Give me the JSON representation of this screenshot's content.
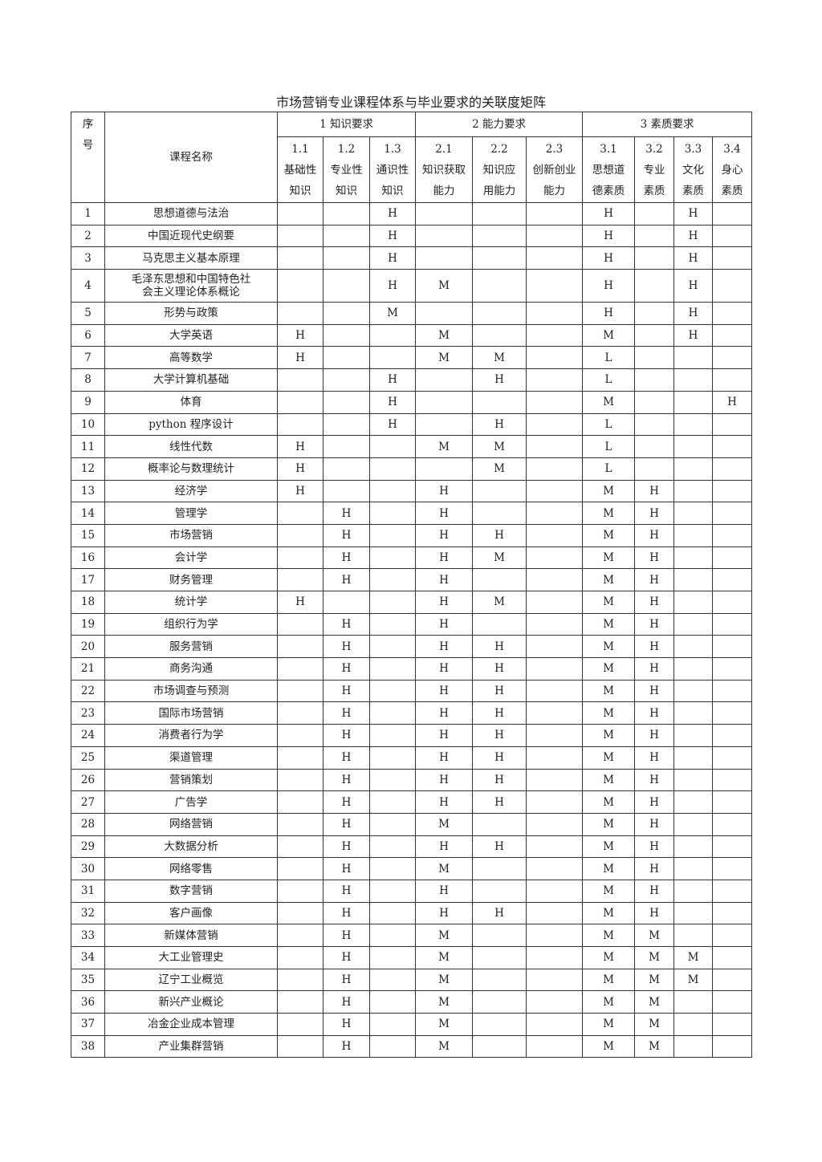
{
  "title": "市场营销专业课程体系与毕业要求的关联度矩阵",
  "header": {
    "no_a": "序",
    "no_b": "号",
    "course": "课程名称",
    "groups": [
      "1 知识要求",
      "2 能力要求",
      "3 素质要求"
    ],
    "subs": [
      {
        "code": "1.1",
        "l1": "基础性",
        "l2": "知识"
      },
      {
        "code": "1.2",
        "l1": "专业性",
        "l2": "知识"
      },
      {
        "code": "1.3",
        "l1": "通识性",
        "l2": "知识"
      },
      {
        "code": "2.1",
        "l1": "知识获取",
        "l2": "能力"
      },
      {
        "code": "2.2",
        "l1": "知识应",
        "l2": "用能力"
      },
      {
        "code": "2.3",
        "l1": "创新创业",
        "l2": "能力"
      },
      {
        "code": "3.1",
        "l1": "思想道",
        "l2": "德素质"
      },
      {
        "code": "3.2",
        "l1": "专业",
        "l2": "素质"
      },
      {
        "code": "3.3",
        "l1": "文化",
        "l2": "素质"
      },
      {
        "code": "3.4",
        "l1": "身心",
        "l2": "素质"
      }
    ]
  },
  "rows": [
    {
      "no": "1",
      "name": "思想道德与法治",
      "v": [
        "",
        "",
        "H",
        "",
        "",
        "",
        "H",
        "",
        "H",
        ""
      ]
    },
    {
      "no": "2",
      "name": "中国近现代史纲要",
      "v": [
        "",
        "",
        "H",
        "",
        "",
        "",
        "H",
        "",
        "H",
        ""
      ]
    },
    {
      "no": "3",
      "name": "马克思主义基本原理",
      "v": [
        "",
        "",
        "H",
        "",
        "",
        "",
        "H",
        "",
        "H",
        ""
      ]
    },
    {
      "no": "4",
      "name": "毛泽东思想和中国特色社会主义理论体系概论",
      "v": [
        "",
        "",
        "H",
        "M",
        "",
        "",
        "H",
        "",
        "H",
        ""
      ]
    },
    {
      "no": "5",
      "name": "形势与政策",
      "v": [
        "",
        "",
        "M",
        "",
        "",
        "",
        "H",
        "",
        "H",
        ""
      ]
    },
    {
      "no": "6",
      "name": "大学英语",
      "v": [
        "H",
        "",
        "",
        "M",
        "",
        "",
        "M",
        "",
        "H",
        ""
      ]
    },
    {
      "no": "7",
      "name": "高等数学",
      "v": [
        "H",
        "",
        "",
        "M",
        "M",
        "",
        "L",
        "",
        "",
        ""
      ]
    },
    {
      "no": "8",
      "name": "大学计算机基础",
      "v": [
        "",
        "",
        "H",
        "",
        "H",
        "",
        "L",
        "",
        "",
        ""
      ]
    },
    {
      "no": "9",
      "name": "体育",
      "v": [
        "",
        "",
        "H",
        "",
        "",
        "",
        "M",
        "",
        "",
        "H"
      ]
    },
    {
      "no": "10",
      "name": "python 程序设计",
      "v": [
        "",
        "",
        "H",
        "",
        "H",
        "",
        "L",
        "",
        "",
        ""
      ]
    },
    {
      "no": "11",
      "name": "线性代数",
      "v": [
        "H",
        "",
        "",
        "M",
        "M",
        "",
        "L",
        "",
        "",
        ""
      ]
    },
    {
      "no": "12",
      "name": "概率论与数理统计",
      "v": [
        "H",
        "",
        "",
        "",
        "M",
        "",
        "L",
        "",
        "",
        ""
      ]
    },
    {
      "no": "13",
      "name": "经济学",
      "v": [
        "H",
        "",
        "",
        "H",
        "",
        "",
        "M",
        "H",
        "",
        ""
      ]
    },
    {
      "no": "14",
      "name": "管理学",
      "v": [
        "",
        "H",
        "",
        "H",
        "",
        "",
        "M",
        "H",
        "",
        ""
      ]
    },
    {
      "no": "15",
      "name": "市场营销",
      "v": [
        "",
        "H",
        "",
        "H",
        "H",
        "",
        "M",
        "H",
        "",
        ""
      ]
    },
    {
      "no": "16",
      "name": "会计学",
      "v": [
        "",
        "H",
        "",
        "H",
        "M",
        "",
        "M",
        "H",
        "",
        ""
      ]
    },
    {
      "no": "17",
      "name": "财务管理",
      "v": [
        "",
        "H",
        "",
        "H",
        "",
        "",
        "M",
        "H",
        "",
        ""
      ]
    },
    {
      "no": "18",
      "name": "统计学",
      "v": [
        "H",
        "",
        "",
        "H",
        "M",
        "",
        "M",
        "H",
        "",
        ""
      ]
    },
    {
      "no": "19",
      "name": "组织行为学",
      "v": [
        "",
        "H",
        "",
        "H",
        "",
        "",
        "M",
        "H",
        "",
        ""
      ]
    },
    {
      "no": "20",
      "name": "服务营销",
      "v": [
        "",
        "H",
        "",
        "H",
        "H",
        "",
        "M",
        "H",
        "",
        ""
      ]
    },
    {
      "no": "21",
      "name": "商务沟通",
      "v": [
        "",
        "H",
        "",
        "H",
        "H",
        "",
        "M",
        "H",
        "",
        ""
      ]
    },
    {
      "no": "22",
      "name": "市场调查与预测",
      "v": [
        "",
        "H",
        "",
        "H",
        "H",
        "",
        "M",
        "H",
        "",
        ""
      ]
    },
    {
      "no": "23",
      "name": "国际市场营销",
      "v": [
        "",
        "H",
        "",
        "H",
        "H",
        "",
        "M",
        "H",
        "",
        ""
      ]
    },
    {
      "no": "24",
      "name": "消费者行为学",
      "v": [
        "",
        "H",
        "",
        "H",
        "H",
        "",
        "M",
        "H",
        "",
        ""
      ]
    },
    {
      "no": "25",
      "name": "渠道管理",
      "v": [
        "",
        "H",
        "",
        "H",
        "H",
        "",
        "M",
        "H",
        "",
        ""
      ]
    },
    {
      "no": "26",
      "name": "营销策划",
      "v": [
        "",
        "H",
        "",
        "H",
        "H",
        "",
        "M",
        "H",
        "",
        ""
      ]
    },
    {
      "no": "27",
      "name": "广告学",
      "v": [
        "",
        "H",
        "",
        "H",
        "H",
        "",
        "M",
        "H",
        "",
        ""
      ]
    },
    {
      "no": "28",
      "name": "网络营销",
      "v": [
        "",
        "H",
        "",
        "M",
        "",
        "",
        "M",
        "H",
        "",
        ""
      ]
    },
    {
      "no": "29",
      "name": "大数据分析",
      "v": [
        "",
        "H",
        "",
        "H",
        "H",
        "",
        "M",
        "H",
        "",
        ""
      ]
    },
    {
      "no": "30",
      "name": "网络零售",
      "v": [
        "",
        "H",
        "",
        "M",
        "",
        "",
        "M",
        "H",
        "",
        ""
      ]
    },
    {
      "no": "31",
      "name": "数字营销",
      "v": [
        "",
        "H",
        "",
        "H",
        "",
        "",
        "M",
        "H",
        "",
        ""
      ]
    },
    {
      "no": "32",
      "name": "客户画像",
      "v": [
        "",
        "H",
        "",
        "H",
        "H",
        "",
        "M",
        "H",
        "",
        ""
      ]
    },
    {
      "no": "33",
      "name": "新媒体营销",
      "v": [
        "",
        "H",
        "",
        "M",
        "",
        "",
        "M",
        "M",
        "",
        ""
      ]
    },
    {
      "no": "34",
      "name": "大工业管理史",
      "v": [
        "",
        "H",
        "",
        "M",
        "",
        "",
        "M",
        "M",
        "M",
        ""
      ]
    },
    {
      "no": "35",
      "name": "辽宁工业概览",
      "v": [
        "",
        "H",
        "",
        "M",
        "",
        "",
        "M",
        "M",
        "M",
        ""
      ]
    },
    {
      "no": "36",
      "name": "新兴产业概论",
      "v": [
        "",
        "H",
        "",
        "M",
        "",
        "",
        "M",
        "M",
        "",
        ""
      ]
    },
    {
      "no": "37",
      "name": "冶金企业成本管理",
      "v": [
        "",
        "H",
        "",
        "M",
        "",
        "",
        "M",
        "M",
        "",
        ""
      ]
    },
    {
      "no": "38",
      "name": "产业集群营销",
      "v": [
        "",
        "H",
        "",
        "M",
        "",
        "",
        "M",
        "M",
        "",
        ""
      ]
    }
  ]
}
